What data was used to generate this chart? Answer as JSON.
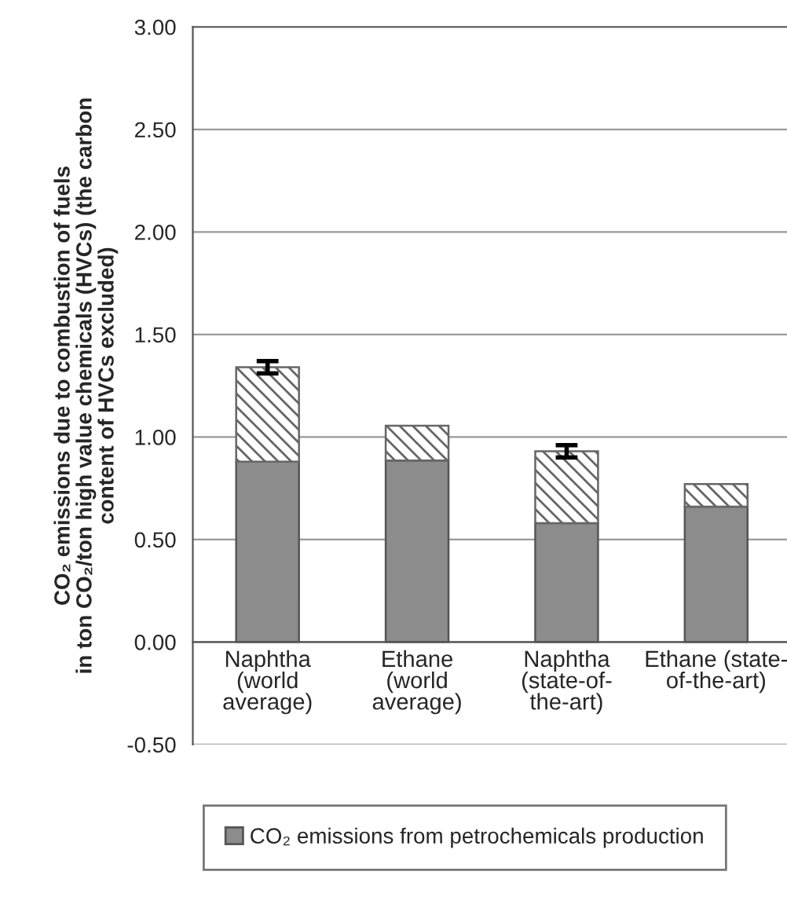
{
  "chart_data": {
    "type": "bar",
    "stacked": true,
    "ylabel": "CO₂ emissions due to combustion of fuels\nin ton CO₂/ton high value chemicals (HVCs) (the carbon\ncontent of HVCs excluded)",
    "categories": [
      "Naphtha\n(world\naverage)",
      "Ethane\n(world\naverage)",
      "Naphtha\n(state-of-\nthe-art)",
      "Ethane (state-\nof-the-art)"
    ],
    "series": [
      {
        "name": "CO₂ emissions from petrochemicals production",
        "color": "#8c8c8c",
        "values": [
          0.88,
          0.885,
          0.58,
          0.66
        ]
      },
      {
        "color": "#666666",
        "values": [
          0.46,
          0.17,
          0.35,
          0.11
        ],
        "errors": [
          0.03,
          null,
          0.03,
          null
        ]
      }
    ],
    "ylim": [
      -0.5,
      3.0
    ],
    "yticks": [
      {
        "value": -0.5,
        "label": "-0.50"
      },
      {
        "value": 0,
        "label": "0.00"
      },
      {
        "value": 0.5,
        "label": "0.50"
      },
      {
        "value": 1.0,
        "label": "1.00"
      },
      {
        "value": 1.5,
        "label": "1.50"
      },
      {
        "value": 2.0,
        "label": "2.00"
      },
      {
        "value": 2.5,
        "label": "2.50"
      },
      {
        "value": 3.0,
        "label": "3.00"
      }
    ],
    "grid": "y",
    "legend": "bottom"
  }
}
